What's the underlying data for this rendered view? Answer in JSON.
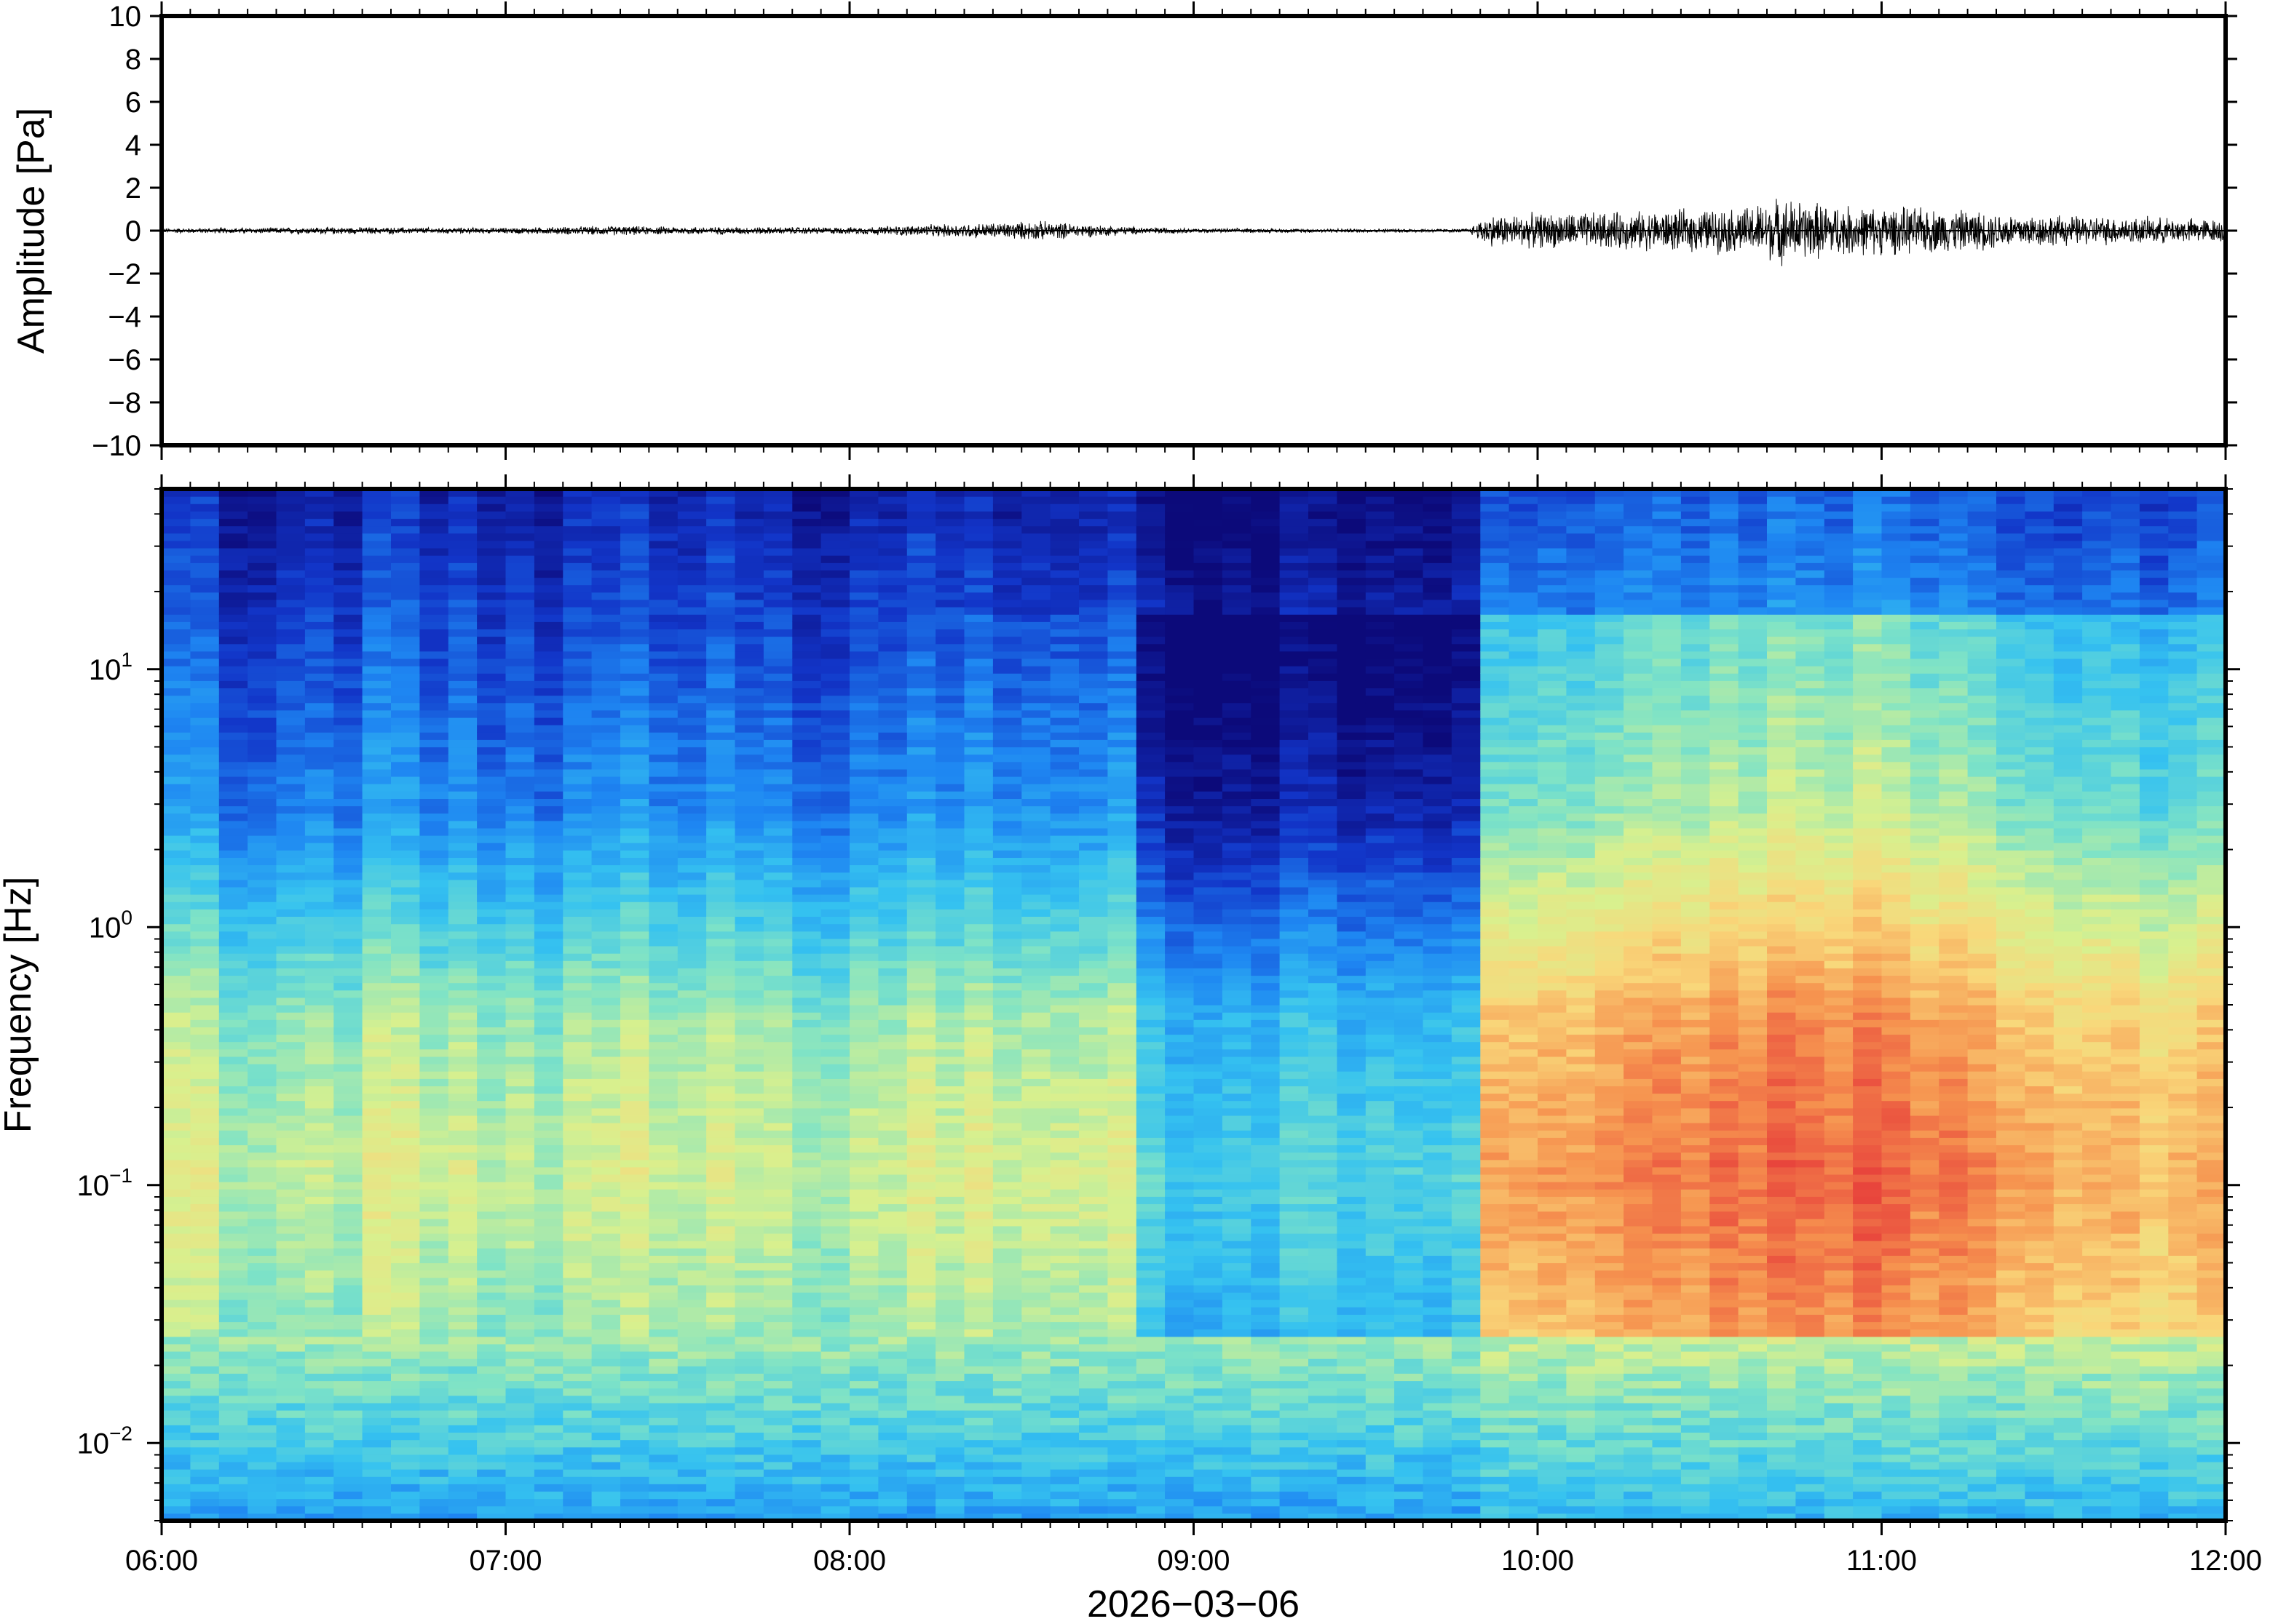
{
  "chart_data": [
    {
      "panel": "waveform",
      "type": "line",
      "ylabel": "Amplitude [Pa]",
      "ylim": [
        -10,
        10
      ],
      "yticks": [
        10,
        8,
        6,
        4,
        2,
        0,
        -2,
        -4,
        -6,
        -8,
        -10
      ],
      "ytick_labels": [
        "10",
        "8",
        "6",
        "4",
        "2",
        "0",
        "−2",
        "−4",
        "−6",
        "−8",
        "−10"
      ],
      "xlim_hours": [
        6,
        12
      ],
      "line_color": "#000000",
      "envelope": {
        "x_hours": [
          6.0,
          6.5,
          7.0,
          7.3,
          7.5,
          8.0,
          8.3,
          8.55,
          8.8,
          9.0,
          9.5,
          9.8,
          9.85,
          10.0,
          10.3,
          10.6,
          10.7,
          10.9,
          11.1,
          11.5,
          12.0
        ],
        "amplitude_pa": [
          0.12,
          0.18,
          0.15,
          0.25,
          0.2,
          0.18,
          0.35,
          0.5,
          0.22,
          0.12,
          0.1,
          0.1,
          0.8,
          0.9,
          1.0,
          1.2,
          1.7,
          1.3,
          1.2,
          0.8,
          0.6
        ]
      }
    },
    {
      "panel": "spectrogram",
      "type": "heatmap",
      "ylabel": "Frequency [Hz]",
      "yscale": "log",
      "ylim_hz": [
        0.005,
        50
      ],
      "ytick_labels": [
        {
          "base": "10",
          "exp": "1",
          "value": 10
        },
        {
          "base": "10",
          "exp": "0",
          "value": 1
        },
        {
          "base": "10",
          "exp": "−1",
          "value": 0.1
        },
        {
          "base": "10",
          "exp": "−2",
          "value": 0.01
        }
      ],
      "xlabel": "2026−03−06",
      "xlim_hours": [
        6,
        12
      ],
      "xticks_hours": [
        6,
        7,
        8,
        9,
        10,
        11,
        12
      ],
      "xtick_labels": [
        "06:00",
        "07:00",
        "08:00",
        "09:00",
        "10:00",
        "11:00",
        "12:00"
      ],
      "colormap": [
        "#0c0a7a",
        "#1235c8",
        "#1e86f2",
        "#35c2f0",
        "#7fe3c6",
        "#d8f08e",
        "#f9d77a",
        "#f6934f",
        "#e8453c"
      ],
      "peak_frequency_band_hz": [
        0.03,
        0.2
      ],
      "quiet_interval_hours": [
        8.8,
        9.8
      ],
      "active_interval_hours": [
        9.8,
        12.0
      ]
    }
  ]
}
